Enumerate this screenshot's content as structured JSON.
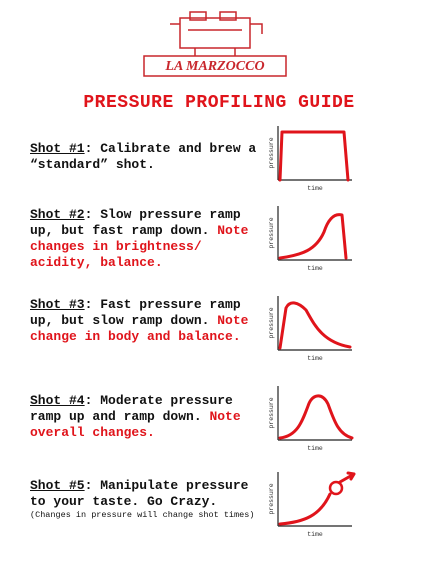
{
  "header": {
    "logo": "LA MARZOCCO",
    "title": "PRESSURE PROFILING GUIDE"
  },
  "axes": {
    "y": "pressure",
    "x": "time"
  },
  "shots": [
    {
      "label": "Shot #1",
      "text": ": Calibrate and brew a “standard” shot."
    },
    {
      "label": "Shot #2",
      "text": ": Slow pressure ramp up, but fast ramp down.",
      "note": "Note changes in brightness/ acidity, balance."
    },
    {
      "label": "Shot #3",
      "text": ": Fast pressure ramp up, but slow ramp down.",
      "note": "Note change in body and balance."
    },
    {
      "label": "Shot #4",
      "text": ": Moderate pressure ramp up and ramp down.",
      "note": "Note overall changes."
    },
    {
      "label": "Shot #5",
      "text": ": Manipulate pressure to your taste. Go Crazy.",
      "small": "(Changes in pressure will change shot times)"
    }
  ]
}
